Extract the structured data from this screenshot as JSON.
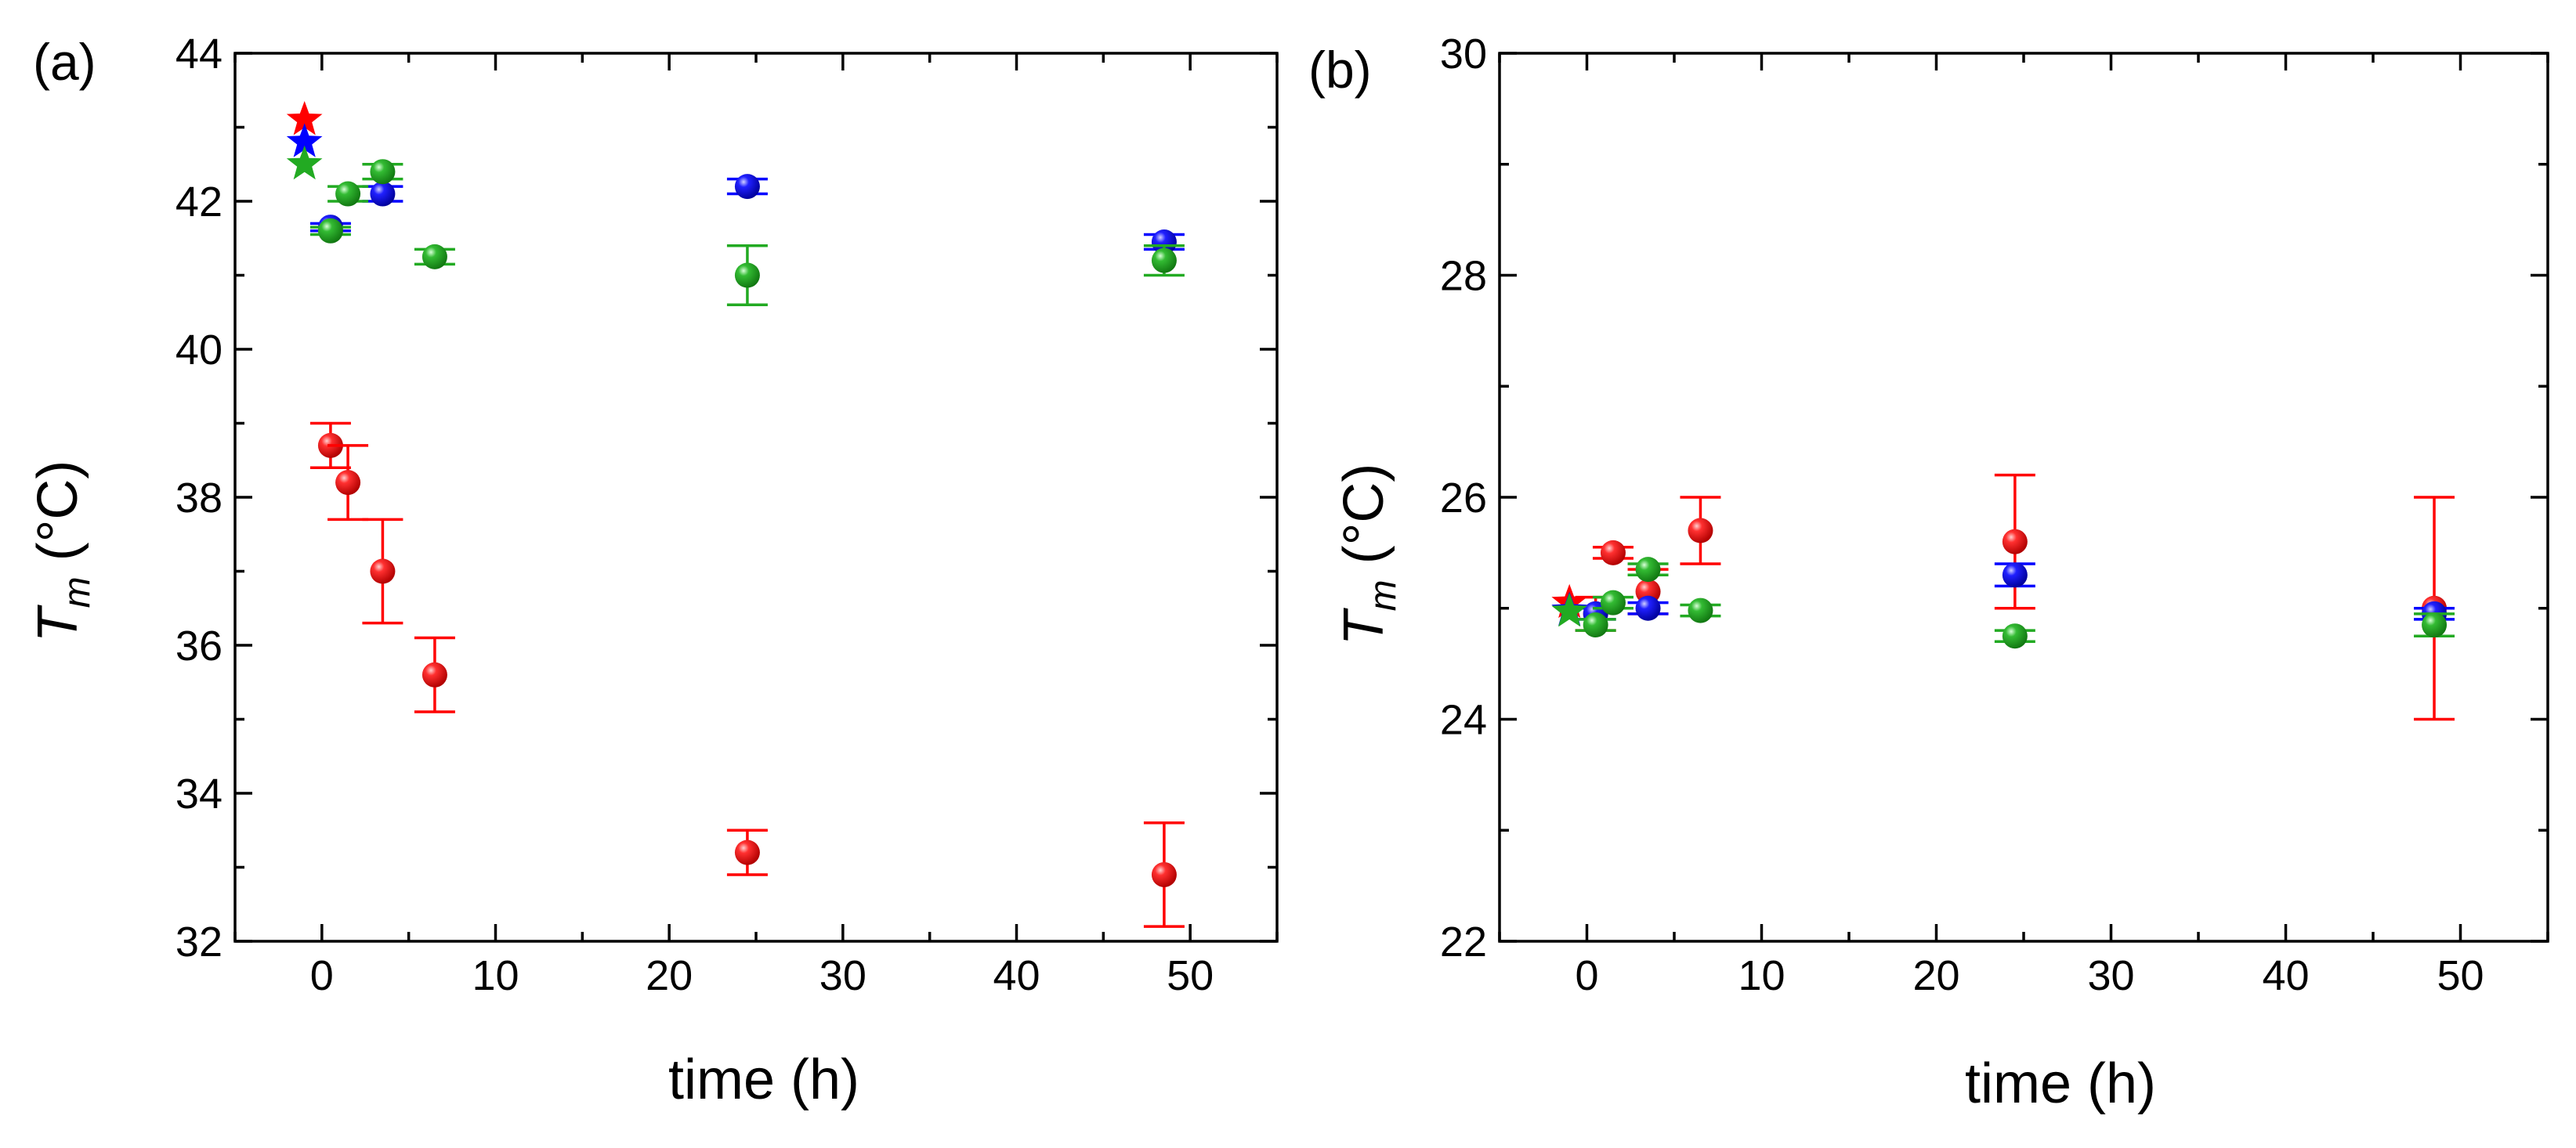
{
  "chart_data": [
    {
      "type": "scatter",
      "panel": "(a)",
      "xlabel": "time (h)",
      "ylabel_main": "T",
      "ylabel_sub": "m",
      "ylabel_unit": "(°C)",
      "xlim": [
        -5,
        55
      ],
      "ylim": [
        32,
        44
      ],
      "xticks": [
        0,
        10,
        20,
        30,
        40,
        50
      ],
      "yticks": [
        32,
        34,
        36,
        38,
        40,
        42,
        44
      ],
      "series": [
        {
          "name": "red",
          "color": "#ff0000",
          "star": {
            "x": -1.0,
            "y": 43.1
          },
          "points": [
            {
              "x": 0.5,
              "y": 38.7,
              "err": 0.3
            },
            {
              "x": 1.5,
              "y": 38.2,
              "err": 0.5
            },
            {
              "x": 3.5,
              "y": 37.0,
              "err": 0.7
            },
            {
              "x": 6.5,
              "y": 35.6,
              "err": 0.5
            },
            {
              "x": 24.5,
              "y": 33.2,
              "err": 0.3
            },
            {
              "x": 48.5,
              "y": 32.9,
              "err": 0.7
            }
          ]
        },
        {
          "name": "blue",
          "color": "#0000ff",
          "star": {
            "x": -1.0,
            "y": 42.8
          },
          "points": [
            {
              "x": 0.5,
              "y": 41.65,
              "err": 0.05
            },
            {
              "x": 3.5,
              "y": 42.1,
              "err": 0.1
            },
            {
              "x": 24.5,
              "y": 42.2,
              "err": 0.1
            },
            {
              "x": 48.5,
              "y": 41.45,
              "err": 0.1
            }
          ]
        },
        {
          "name": "green",
          "color": "#22aa22",
          "star": {
            "x": -1.0,
            "y": 42.5
          },
          "points": [
            {
              "x": 0.5,
              "y": 41.6,
              "err": 0.05
            },
            {
              "x": 1.5,
              "y": 42.1,
              "err": 0.1
            },
            {
              "x": 3.5,
              "y": 42.4,
              "err": 0.1
            },
            {
              "x": 6.5,
              "y": 41.25,
              "err": 0.1
            },
            {
              "x": 24.5,
              "y": 41.0,
              "err": 0.4
            },
            {
              "x": 48.5,
              "y": 41.2,
              "err": 0.2
            }
          ]
        }
      ]
    },
    {
      "type": "scatter",
      "panel": "(b)",
      "xlabel": "time (h)",
      "ylabel_main": "T",
      "ylabel_sub": "m",
      "ylabel_unit": "(°C)",
      "xlim": [
        -5,
        55
      ],
      "ylim": [
        22,
        30
      ],
      "xticks": [
        0,
        10,
        20,
        30,
        40,
        50
      ],
      "yticks": [
        22,
        24,
        26,
        28,
        30
      ],
      "series": [
        {
          "name": "red",
          "color": "#ff0000",
          "star": {
            "x": -1.0,
            "y": 25.05
          },
          "points": [
            {
              "x": 0.5,
              "y": 24.95,
              "err": 0.15
            },
            {
              "x": 1.5,
              "y": 25.5,
              "err": 0.05
            },
            {
              "x": 3.5,
              "y": 25.15,
              "err": 0.2
            },
            {
              "x": 6.5,
              "y": 25.7,
              "err": 0.3
            },
            {
              "x": 24.5,
              "y": 25.6,
              "err": 0.6
            },
            {
              "x": 48.5,
              "y": 25.0,
              "err": 1.0
            }
          ]
        },
        {
          "name": "blue",
          "color": "#0000ff",
          "star": {
            "x": -1.0,
            "y": 24.98
          },
          "points": [
            {
              "x": 0.5,
              "y": 24.95,
              "err": 0.05
            },
            {
              "x": 3.5,
              "y": 25.0,
              "err": 0.05
            },
            {
              "x": 24.5,
              "y": 25.3,
              "err": 0.1
            },
            {
              "x": 48.5,
              "y": 24.95,
              "err": 0.05
            }
          ]
        },
        {
          "name": "green",
          "color": "#22aa22",
          "star": {
            "x": -1.0,
            "y": 24.97
          },
          "points": [
            {
              "x": 0.5,
              "y": 24.85,
              "err": 0.05
            },
            {
              "x": 1.5,
              "y": 25.05,
              "err": 0.05
            },
            {
              "x": 3.5,
              "y": 25.35,
              "err": 0.05
            },
            {
              "x": 6.5,
              "y": 24.98,
              "err": 0.05
            },
            {
              "x": 24.5,
              "y": 24.75,
              "err": 0.05
            },
            {
              "x": 48.5,
              "y": 24.85,
              "err": 0.1
            }
          ]
        }
      ]
    }
  ]
}
